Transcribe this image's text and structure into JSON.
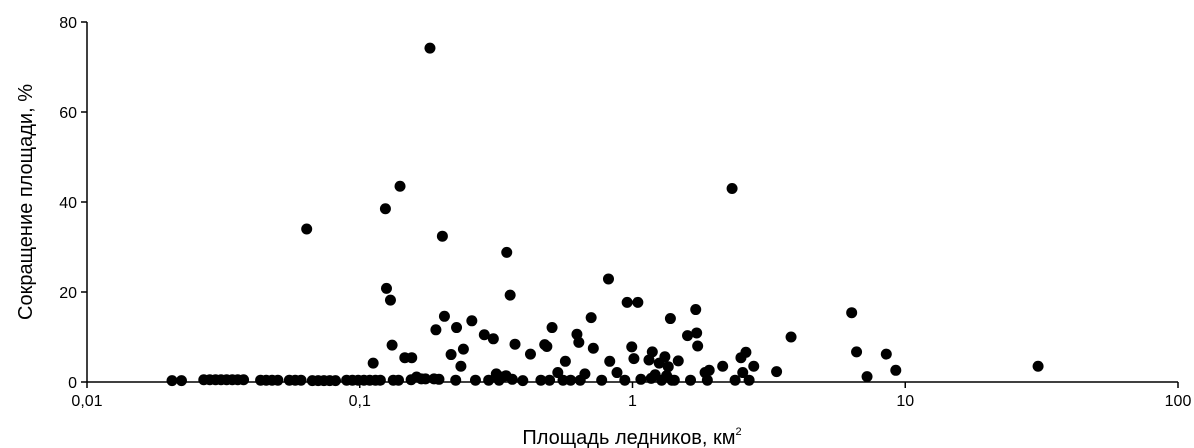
{
  "chart_data": {
    "type": "scatter",
    "title": "",
    "xlabel": "Площадь ледников, км",
    "xlabel_superscript": "2",
    "ylabel": "Сокращение площади, %",
    "x_scale": "log",
    "xlim": [
      0.01,
      100
    ],
    "ylim": [
      0,
      80
    ],
    "x_ticks": [
      {
        "value": 0.01,
        "label": "0,01"
      },
      {
        "value": 0.1,
        "label": "0,1"
      },
      {
        "value": 1,
        "label": "1"
      },
      {
        "value": 10,
        "label": "10"
      },
      {
        "value": 100,
        "label": "100"
      }
    ],
    "y_ticks": [
      {
        "value": 0,
        "label": "0"
      },
      {
        "value": 20,
        "label": "20"
      },
      {
        "value": 40,
        "label": "40"
      },
      {
        "value": 60,
        "label": "60"
      },
      {
        "value": 80,
        "label": "80"
      }
    ],
    "grid": false,
    "legend": "none",
    "marker_color": "#000000",
    "points": [
      {
        "x": 0.0205,
        "y": 0.3
      },
      {
        "x": 0.0222,
        "y": 0.3
      },
      {
        "x": 0.0268,
        "y": 0.5
      },
      {
        "x": 0.0282,
        "y": 0.5
      },
      {
        "x": 0.0296,
        "y": 0.5
      },
      {
        "x": 0.031,
        "y": 0.5
      },
      {
        "x": 0.0325,
        "y": 0.5
      },
      {
        "x": 0.0341,
        "y": 0.5
      },
      {
        "x": 0.0357,
        "y": 0.5
      },
      {
        "x": 0.0375,
        "y": 0.5
      },
      {
        "x": 0.0433,
        "y": 0.4
      },
      {
        "x": 0.0454,
        "y": 0.4
      },
      {
        "x": 0.0477,
        "y": 0.4
      },
      {
        "x": 0.0501,
        "y": 0.4
      },
      {
        "x": 0.0552,
        "y": 0.4
      },
      {
        "x": 0.058,
        "y": 0.4
      },
      {
        "x": 0.0609,
        "y": 0.4
      },
      {
        "x": 0.0639,
        "y": 34
      },
      {
        "x": 0.067,
        "y": 0.3
      },
      {
        "x": 0.0704,
        "y": 0.3
      },
      {
        "x": 0.0739,
        "y": 0.3
      },
      {
        "x": 0.0776,
        "y": 0.3
      },
      {
        "x": 0.0815,
        "y": 0.3
      },
      {
        "x": 0.0895,
        "y": 0.4
      },
      {
        "x": 0.094,
        "y": 0.4
      },
      {
        "x": 0.0987,
        "y": 0.4
      },
      {
        "x": 0.1036,
        "y": 0.4
      },
      {
        "x": 0.1088,
        "y": 0.4
      },
      {
        "x": 0.1142,
        "y": 0.4
      },
      {
        "x": 0.112,
        "y": 4.2
      },
      {
        "x": 0.119,
        "y": 0.4
      },
      {
        "x": 0.1242,
        "y": 38.5
      },
      {
        "x": 0.1253,
        "y": 20.8
      },
      {
        "x": 0.1296,
        "y": 18.2
      },
      {
        "x": 0.1314,
        "y": 8.2
      },
      {
        "x": 0.1327,
        "y": 0.4
      },
      {
        "x": 0.1387,
        "y": 0.4
      },
      {
        "x": 0.1405,
        "y": 43.5
      },
      {
        "x": 0.1463,
        "y": 5.4
      },
      {
        "x": 0.1551,
        "y": 5.4
      },
      {
        "x": 0.1543,
        "y": 0.5
      },
      {
        "x": 0.1616,
        "y": 1.1
      },
      {
        "x": 0.1682,
        "y": 0.7
      },
      {
        "x": 0.1742,
        "y": 0.7
      },
      {
        "x": 0.1809,
        "y": 74.2
      },
      {
        "x": 0.1872,
        "y": 0.7
      },
      {
        "x": 0.1902,
        "y": 11.6
      },
      {
        "x": 0.1952,
        "y": 0.6
      },
      {
        "x": 0.2009,
        "y": 32.4
      },
      {
        "x": 0.2044,
        "y": 14.6
      },
      {
        "x": 0.2162,
        "y": 6.1
      },
      {
        "x": 0.2248,
        "y": 0.4
      },
      {
        "x": 0.2264,
        "y": 12.1
      },
      {
        "x": 0.2349,
        "y": 3.5
      },
      {
        "x": 0.2399,
        "y": 7.3
      },
      {
        "x": 0.2576,
        "y": 13.6
      },
      {
        "x": 0.2656,
        "y": 0.4
      },
      {
        "x": 0.2862,
        "y": 10.5
      },
      {
        "x": 0.2969,
        "y": 0.4
      },
      {
        "x": 0.3089,
        "y": 9.6
      },
      {
        "x": 0.3167,
        "y": 1.8
      },
      {
        "x": 0.3242,
        "y": 0.4
      },
      {
        "x": 0.3326,
        "y": 1.1
      },
      {
        "x": 0.3438,
        "y": 1.4
      },
      {
        "x": 0.3459,
        "y": 28.8
      },
      {
        "x": 0.356,
        "y": 19.3
      },
      {
        "x": 0.3624,
        "y": 0.6
      },
      {
        "x": 0.3709,
        "y": 8.4
      },
      {
        "x": 0.3961,
        "y": 0.3
      },
      {
        "x": 0.4226,
        "y": 6.2
      },
      {
        "x": 0.4615,
        "y": 0.4
      },
      {
        "x": 0.4766,
        "y": 8.3
      },
      {
        "x": 0.4853,
        "y": 7.9
      },
      {
        "x": 0.4965,
        "y": 0.4
      },
      {
        "x": 0.5071,
        "y": 12.1
      },
      {
        "x": 0.5323,
        "y": 2.1
      },
      {
        "x": 0.5562,
        "y": 0.4
      },
      {
        "x": 0.5674,
        "y": 4.6
      },
      {
        "x": 0.5931,
        "y": 0.4
      },
      {
        "x": 0.6256,
        "y": 10.6
      },
      {
        "x": 0.6357,
        "y": 8.8
      },
      {
        "x": 0.6432,
        "y": 0.4
      },
      {
        "x": 0.6691,
        "y": 1.8
      },
      {
        "x": 0.7054,
        "y": 14.3
      },
      {
        "x": 0.7184,
        "y": 7.5
      },
      {
        "x": 0.7709,
        "y": 0.4
      },
      {
        "x": 0.8165,
        "y": 22.9
      },
      {
        "x": 0.8252,
        "y": 4.6
      },
      {
        "x": 0.8773,
        "y": 2.1
      },
      {
        "x": 0.9372,
        "y": 0.4
      },
      {
        "x": 0.9559,
        "y": 17.7
      },
      {
        "x": 0.9937,
        "y": 7.8
      },
      {
        "x": 1.012,
        "y": 5.2
      },
      {
        "x": 1.0462,
        "y": 17.7
      },
      {
        "x": 1.0733,
        "y": 0.6
      },
      {
        "x": 1.1493,
        "y": 4.9
      },
      {
        "x": 1.1709,
        "y": 0.8
      },
      {
        "x": 1.182,
        "y": 6.7
      },
      {
        "x": 1.2108,
        "y": 1.6
      },
      {
        "x": 1.2531,
        "y": 4.2
      },
      {
        "x": 1.2787,
        "y": 0.4
      },
      {
        "x": 1.3143,
        "y": 5.6
      },
      {
        "x": 1.3336,
        "y": 1.4
      },
      {
        "x": 1.3523,
        "y": 3.4
      },
      {
        "x": 1.3771,
        "y": 14.1
      },
      {
        "x": 1.3949,
        "y": 0.4
      },
      {
        "x": 1.4234,
        "y": 0.4
      },
      {
        "x": 1.4715,
        "y": 4.7
      },
      {
        "x": 1.5911,
        "y": 10.3
      },
      {
        "x": 1.6319,
        "y": 0.4
      },
      {
        "x": 1.7054,
        "y": 16.1
      },
      {
        "x": 1.7187,
        "y": 10.9
      },
      {
        "x": 1.7334,
        "y": 8.0
      },
      {
        "x": 1.8453,
        "y": 2.1
      },
      {
        "x": 1.8811,
        "y": 0.4
      },
      {
        "x": 1.9108,
        "y": 2.6
      },
      {
        "x": 2.1411,
        "y": 3.5
      },
      {
        "x": 2.3179,
        "y": 43.0
      },
      {
        "x": 2.3779,
        "y": 0.4
      },
      {
        "x": 2.4982,
        "y": 5.4
      },
      {
        "x": 2.5363,
        "y": 2.1
      },
      {
        "x": 2.6052,
        "y": 6.6
      },
      {
        "x": 2.6762,
        "y": 0.4
      },
      {
        "x": 2.7832,
        "y": 3.5
      },
      {
        "x": 3.3751,
        "y": 2.3
      },
      {
        "x": 3.8137,
        "y": 10.0
      },
      {
        "x": 6.3618,
        "y": 15.4
      },
      {
        "x": 6.6299,
        "y": 6.7
      },
      {
        "x": 7.2433,
        "y": 1.2
      },
      {
        "x": 8.5219,
        "y": 6.2
      },
      {
        "x": 9.2329,
        "y": 2.6
      },
      {
        "x": 30.6911,
        "y": 3.5
      }
    ]
  }
}
